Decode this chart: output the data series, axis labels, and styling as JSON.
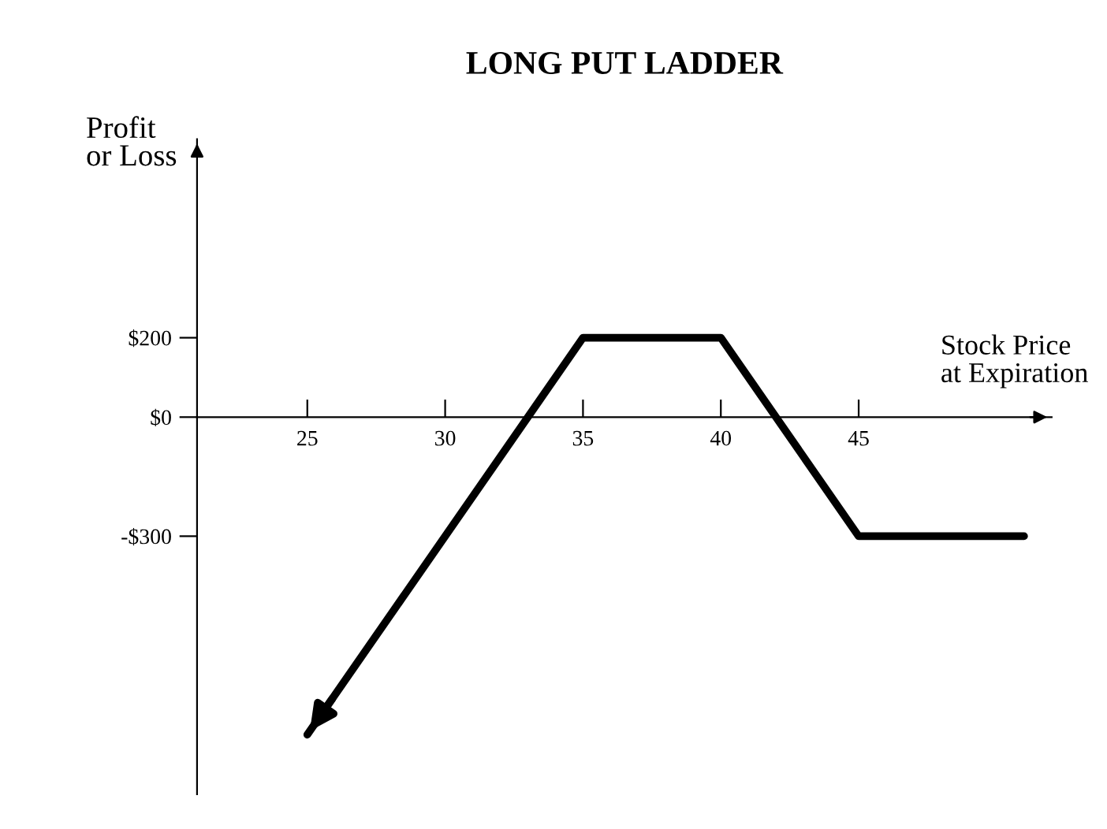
{
  "chart_data": {
    "type": "line",
    "title": "LONG PUT LADDER",
    "xlabel": "Stock Price\nat Expiration",
    "ylabel": "Profit\nor Loss",
    "x": [
      25,
      35,
      40,
      45,
      51
    ],
    "series": [
      {
        "color": "#000000",
        "values": [
          -800,
          200,
          200,
          -300,
          -300
        ]
      }
    ],
    "xlim": [
      21,
      52
    ],
    "ylim": [
      -950,
      700
    ],
    "xticks": [
      25,
      30,
      35,
      40,
      45
    ],
    "yticks": [
      {
        "value": 200,
        "label": "$200"
      },
      {
        "value": 0,
        "label": "$0"
      },
      {
        "value": -300,
        "label": "-$300"
      }
    ],
    "grid": false,
    "legend": false,
    "marker": "none",
    "line_style": "solid"
  }
}
